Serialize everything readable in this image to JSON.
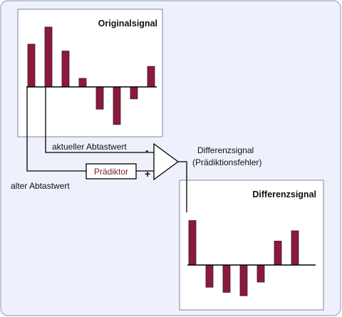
{
  "chart_data": [
    {
      "type": "bar",
      "title": "Originalsignal",
      "values": [
        2.5,
        3.5,
        2.1,
        0.5,
        -1.3,
        -2.2,
        -0.7,
        1.2
      ]
    },
    {
      "type": "bar",
      "title": "Differenzsignal",
      "values": [
        2.6,
        -1.3,
        -1.6,
        -1.8,
        -1.0,
        1.4,
        2.0
      ]
    }
  ],
  "labels": {
    "current_sample": "aktueller Abtastwert",
    "old_sample": "alter Abtastwert",
    "predictor": "Prädiktor",
    "diff_line1": "Differenzsignal",
    "diff_line2": "(Prädiktionsfehler)",
    "minus": "-",
    "plus": "+"
  }
}
